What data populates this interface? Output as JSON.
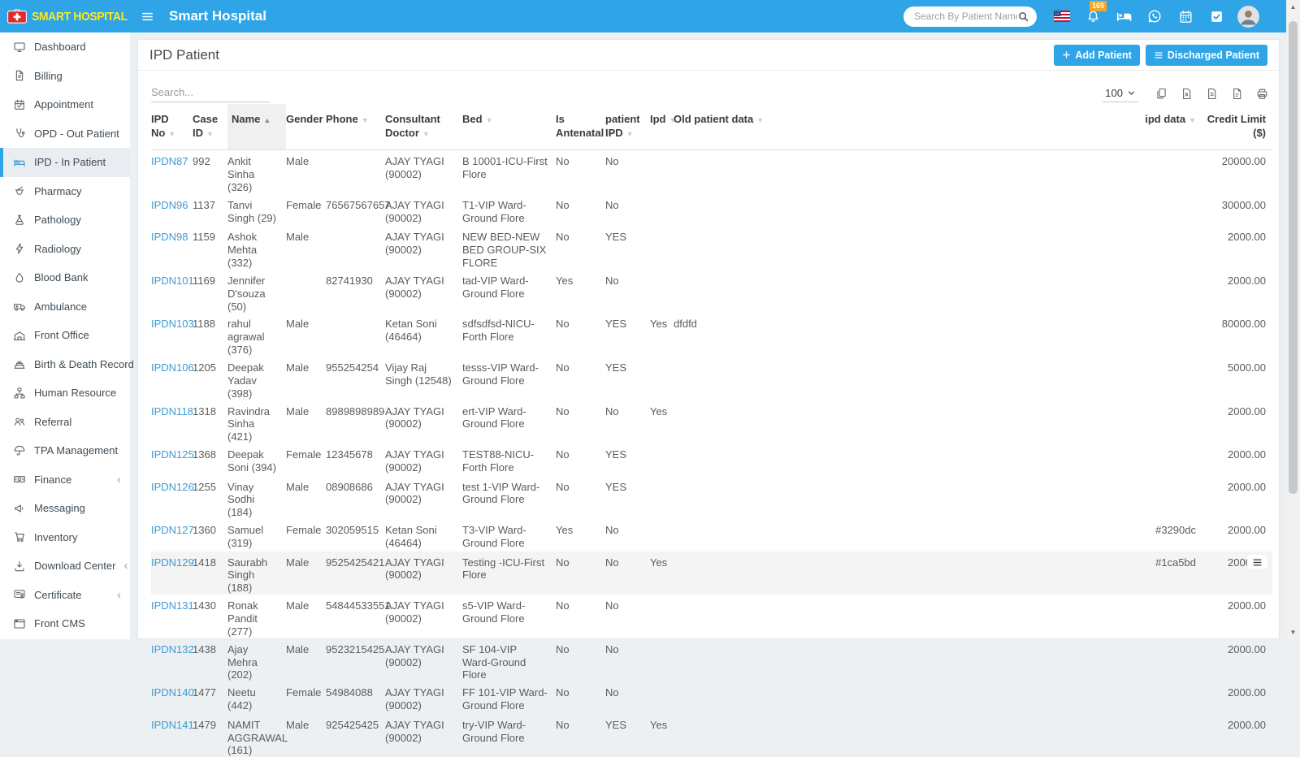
{
  "header": {
    "logo_text": "SMART HOSPITAL",
    "app_title": "Smart Hospital",
    "search_placeholder": "Search By Patient Name",
    "notification_count": "165",
    "icons": [
      "us-flag",
      "notifications-bell",
      "bed-status",
      "whatsapp",
      "calendar",
      "tasks",
      "user-avatar"
    ]
  },
  "sidebar": {
    "items": [
      {
        "label": "Dashboard",
        "icon": "dashboard",
        "active": false,
        "has_submenu": false
      },
      {
        "label": "Billing",
        "icon": "billing",
        "active": false,
        "has_submenu": false
      },
      {
        "label": "Appointment",
        "icon": "appointment",
        "active": false,
        "has_submenu": false
      },
      {
        "label": "OPD - Out Patient",
        "icon": "opd",
        "active": false,
        "has_submenu": false
      },
      {
        "label": "IPD - In Patient",
        "icon": "ipd",
        "active": true,
        "has_submenu": false
      },
      {
        "label": "Pharmacy",
        "icon": "pharmacy",
        "active": false,
        "has_submenu": false
      },
      {
        "label": "Pathology",
        "icon": "pathology",
        "active": false,
        "has_submenu": false
      },
      {
        "label": "Radiology",
        "icon": "radiology",
        "active": false,
        "has_submenu": false
      },
      {
        "label": "Blood Bank",
        "icon": "blood-bank",
        "active": false,
        "has_submenu": false
      },
      {
        "label": "Ambulance",
        "icon": "ambulance",
        "active": false,
        "has_submenu": false
      },
      {
        "label": "Front Office",
        "icon": "front-office",
        "active": false,
        "has_submenu": false
      },
      {
        "label": "Birth & Death Record",
        "icon": "birth-death",
        "active": false,
        "has_submenu": true
      },
      {
        "label": "Human Resource",
        "icon": "human-resource",
        "active": false,
        "has_submenu": false
      },
      {
        "label": "Referral",
        "icon": "referral",
        "active": false,
        "has_submenu": false
      },
      {
        "label": "TPA Management",
        "icon": "tpa",
        "active": false,
        "has_submenu": false
      },
      {
        "label": "Finance",
        "icon": "finance",
        "active": false,
        "has_submenu": true
      },
      {
        "label": "Messaging",
        "icon": "messaging",
        "active": false,
        "has_submenu": false
      },
      {
        "label": "Inventory",
        "icon": "inventory",
        "active": false,
        "has_submenu": false
      },
      {
        "label": "Download Center",
        "icon": "download",
        "active": false,
        "has_submenu": true
      },
      {
        "label": "Certificate",
        "icon": "certificate",
        "active": false,
        "has_submenu": true
      },
      {
        "label": "Front CMS",
        "icon": "front-cms",
        "active": false,
        "has_submenu": false
      }
    ]
  },
  "page": {
    "title": "IPD Patient",
    "add_button": "Add Patient",
    "discharged_button": "Discharged Patient",
    "table_search_placeholder": "Search...",
    "page_length": "100",
    "export_buttons": [
      "copy",
      "excel",
      "csv",
      "pdf",
      "print"
    ]
  },
  "table": {
    "columns": [
      {
        "label": "IPD No",
        "sort": "avail"
      },
      {
        "label": "Case ID",
        "sort": "avail"
      },
      {
        "label": "Name",
        "sort": "asc"
      },
      {
        "label": "Gender",
        "sort": "avail"
      },
      {
        "label": "Phone",
        "sort": "avail"
      },
      {
        "label": "Consultant Doctor",
        "sort": "avail"
      },
      {
        "label": "Bed",
        "sort": "avail"
      },
      {
        "label": "Is Antenatal",
        "sort": "avail"
      },
      {
        "label": "patient IPD",
        "sort": "avail"
      },
      {
        "label": "Ipd",
        "sort": "avail"
      },
      {
        "label": "Old patient data",
        "sort": "avail"
      },
      {
        "label": "ipd data",
        "sort": "avail"
      },
      {
        "label": "Credit Limit ($)",
        "sort": "none"
      }
    ],
    "rows": [
      {
        "cells": [
          "IPDN87",
          "992",
          "Ankit Sinha (326)",
          "Male",
          "",
          "AJAY TYAGI (90002)",
          "B 10001-ICU-First Flore",
          "No",
          "No",
          "",
          "",
          "",
          "20000.00"
        ],
        "highlighted": false,
        "menu": false
      },
      {
        "cells": [
          "IPDN96",
          "1137",
          "Tanvi Singh (29)",
          "Female",
          "76567567657",
          "AJAY TYAGI (90002)",
          "T1-VIP Ward-Ground Flore",
          "No",
          "No",
          "",
          "",
          "",
          "30000.00"
        ],
        "highlighted": false,
        "menu": false
      },
      {
        "cells": [
          "IPDN98",
          "1159",
          "Ashok Mehta (332)",
          "Male",
          "",
          "AJAY TYAGI (90002)",
          "NEW BED-NEW BED GROUP-SIX FLORE",
          "No",
          "YES",
          "",
          "",
          "",
          "2000.00"
        ],
        "highlighted": false,
        "menu": false
      },
      {
        "cells": [
          "IPDN101",
          "1169",
          "Jennifer D'souza (50)",
          "",
          "82741930",
          "AJAY TYAGI (90002)",
          "tad-VIP Ward-Ground Flore",
          "Yes",
          "No",
          "",
          "",
          "",
          "2000.00"
        ],
        "highlighted": false,
        "menu": false
      },
      {
        "cells": [
          "IPDN103",
          "1188",
          "rahul agrawal (376)",
          "Male",
          "",
          "Ketan Soni (46464)",
          "sdfsdfsd-NICU-Forth Flore",
          "No",
          "YES",
          "Yes",
          "dfdfd",
          "",
          "80000.00"
        ],
        "highlighted": false,
        "menu": false
      },
      {
        "cells": [
          "IPDN106",
          "1205",
          "Deepak Yadav (398)",
          "Male",
          "955254254",
          "Vijay Raj Singh (12548)",
          "tesss-VIP Ward-Ground Flore",
          "No",
          "YES",
          "",
          "",
          "",
          "5000.00"
        ],
        "highlighted": false,
        "menu": false
      },
      {
        "cells": [
          "IPDN118",
          "1318",
          "Ravindra Sinha (421)",
          "Male",
          "8989898989",
          "AJAY TYAGI (90002)",
          "ert-VIP Ward-Ground Flore",
          "No",
          "No",
          "Yes",
          "",
          "",
          "2000.00"
        ],
        "highlighted": false,
        "menu": false
      },
      {
        "cells": [
          "IPDN125",
          "1368",
          "Deepak Soni (394)",
          "Female",
          "12345678",
          "AJAY TYAGI (90002)",
          "TEST88-NICU-Forth Flore",
          "No",
          "YES",
          "",
          "",
          "",
          "2000.00"
        ],
        "highlighted": false,
        "menu": false
      },
      {
        "cells": [
          "IPDN126",
          "1255",
          "Vinay Sodhi (184)",
          "Male",
          "08908686",
          "AJAY TYAGI (90002)",
          "test 1-VIP Ward-Ground Flore",
          "No",
          "YES",
          "",
          "",
          "",
          "2000.00"
        ],
        "highlighted": false,
        "menu": false
      },
      {
        "cells": [
          "IPDN127",
          "1360",
          "Samuel (319)",
          "Female",
          "302059515",
          "Ketan Soni (46464)",
          "T3-VIP Ward-Ground Flore",
          "Yes",
          "No",
          "",
          "",
          "#3290dc",
          "2000.00"
        ],
        "highlighted": false,
        "menu": false
      },
      {
        "cells": [
          "IPDN129",
          "1418",
          "Saurabh Singh (188)",
          "Male",
          "9525425421",
          "AJAY TYAGI (90002)",
          "Testing -ICU-First Flore",
          "No",
          "No",
          "Yes",
          "",
          "#1ca5bd",
          "2000.00"
        ],
        "highlighted": true,
        "menu": true
      },
      {
        "cells": [
          "IPDN131",
          "1430",
          "Ronak Pandit (277)",
          "Male",
          "54844533551",
          "AJAY TYAGI (90002)",
          "s5-VIP Ward-Ground Flore",
          "No",
          "No",
          "",
          "",
          "",
          "2000.00"
        ],
        "highlighted": false,
        "menu": false
      },
      {
        "cells": [
          "IPDN132",
          "1438",
          "Ajay Mehra (202)",
          "Male",
          "9523215425",
          "AJAY TYAGI (90002)",
          "SF 104-VIP Ward-Ground Flore",
          "No",
          "No",
          "",
          "",
          "",
          "2000.00"
        ],
        "highlighted": false,
        "menu": false
      },
      {
        "cells": [
          "IPDN140",
          "1477",
          "Neetu (442)",
          "Female",
          "54984088",
          "AJAY TYAGI (90002)",
          "FF 101-VIP Ward-Ground Flore",
          "No",
          "No",
          "",
          "",
          "",
          "2000.00"
        ],
        "highlighted": false,
        "menu": false
      },
      {
        "cells": [
          "IPDN141",
          "1479",
          "NAMIT AGGRAWAL (161)",
          "Male",
          "925425425",
          "AJAY TYAGI (90002)",
          "try-VIP Ward-Ground Flore",
          "No",
          "YES",
          "Yes",
          "",
          "",
          "2000.00"
        ],
        "highlighted": false,
        "menu": false
      }
    ]
  },
  "colors": {
    "accent": "#2fa4e7",
    "logo_text": "#ffe81a",
    "badge": "#f7a725",
    "link": "#3d9bd3",
    "row_highlight": "#f4f4f4"
  }
}
